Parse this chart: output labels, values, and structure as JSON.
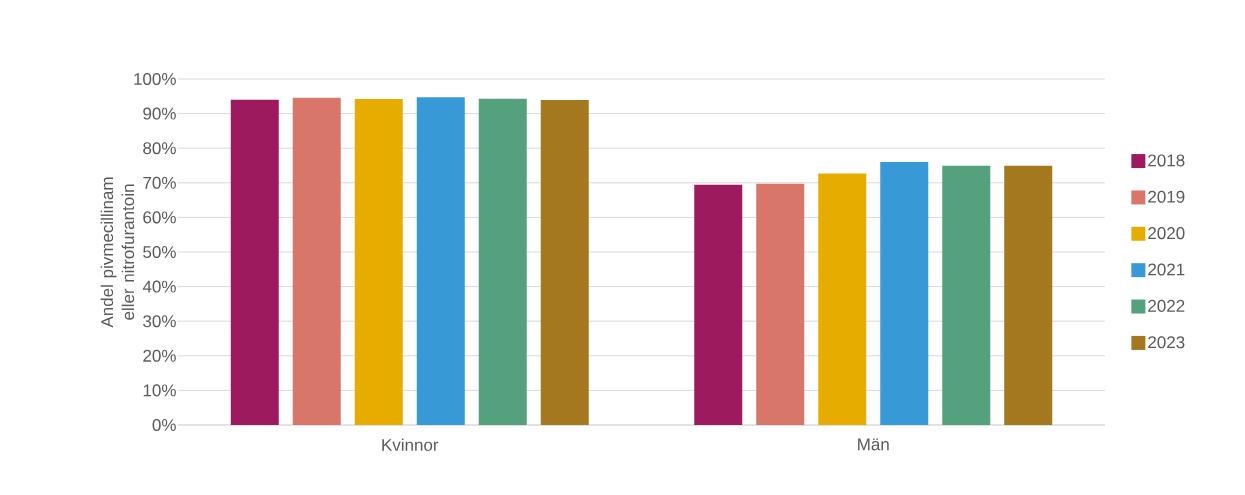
{
  "chart_data": {
    "type": "bar",
    "ylabel": "Andel pivmecillinam eller nitrofurantoin",
    "categories": [
      "Kvinnor",
      "Män"
    ],
    "series": [
      {
        "name": "2018",
        "color": "#9e1a5f",
        "values": [
          94.0,
          69.4
        ]
      },
      {
        "name": "2019",
        "color": "#d87769",
        "values": [
          94.6,
          69.7
        ]
      },
      {
        "name": "2020",
        "color": "#e6ad00",
        "values": [
          94.2,
          72.7
        ]
      },
      {
        "name": "2021",
        "color": "#3799d5",
        "values": [
          94.7,
          76.0
        ]
      },
      {
        "name": "2022",
        "color": "#55a17e",
        "values": [
          94.3,
          74.9
        ]
      },
      {
        "name": "2023",
        "color": "#a4781e",
        "values": [
          93.9,
          74.9
        ]
      }
    ],
    "ylim": [
      0,
      100
    ],
    "yticks": [
      {
        "value": 0,
        "label": "0%"
      },
      {
        "value": 10,
        "label": "10%"
      },
      {
        "value": 20,
        "label": "20%"
      },
      {
        "value": 30,
        "label": "30%"
      },
      {
        "value": 40,
        "label": "40%"
      },
      {
        "value": 50,
        "label": "50%"
      },
      {
        "value": 60,
        "label": "60%"
      },
      {
        "value": 70,
        "label": "70%"
      },
      {
        "value": 80,
        "label": "80%"
      },
      {
        "value": 90,
        "label": "90%"
      },
      {
        "value": 100,
        "label": "100%"
      }
    ],
    "grid": "y",
    "legend": "right"
  }
}
